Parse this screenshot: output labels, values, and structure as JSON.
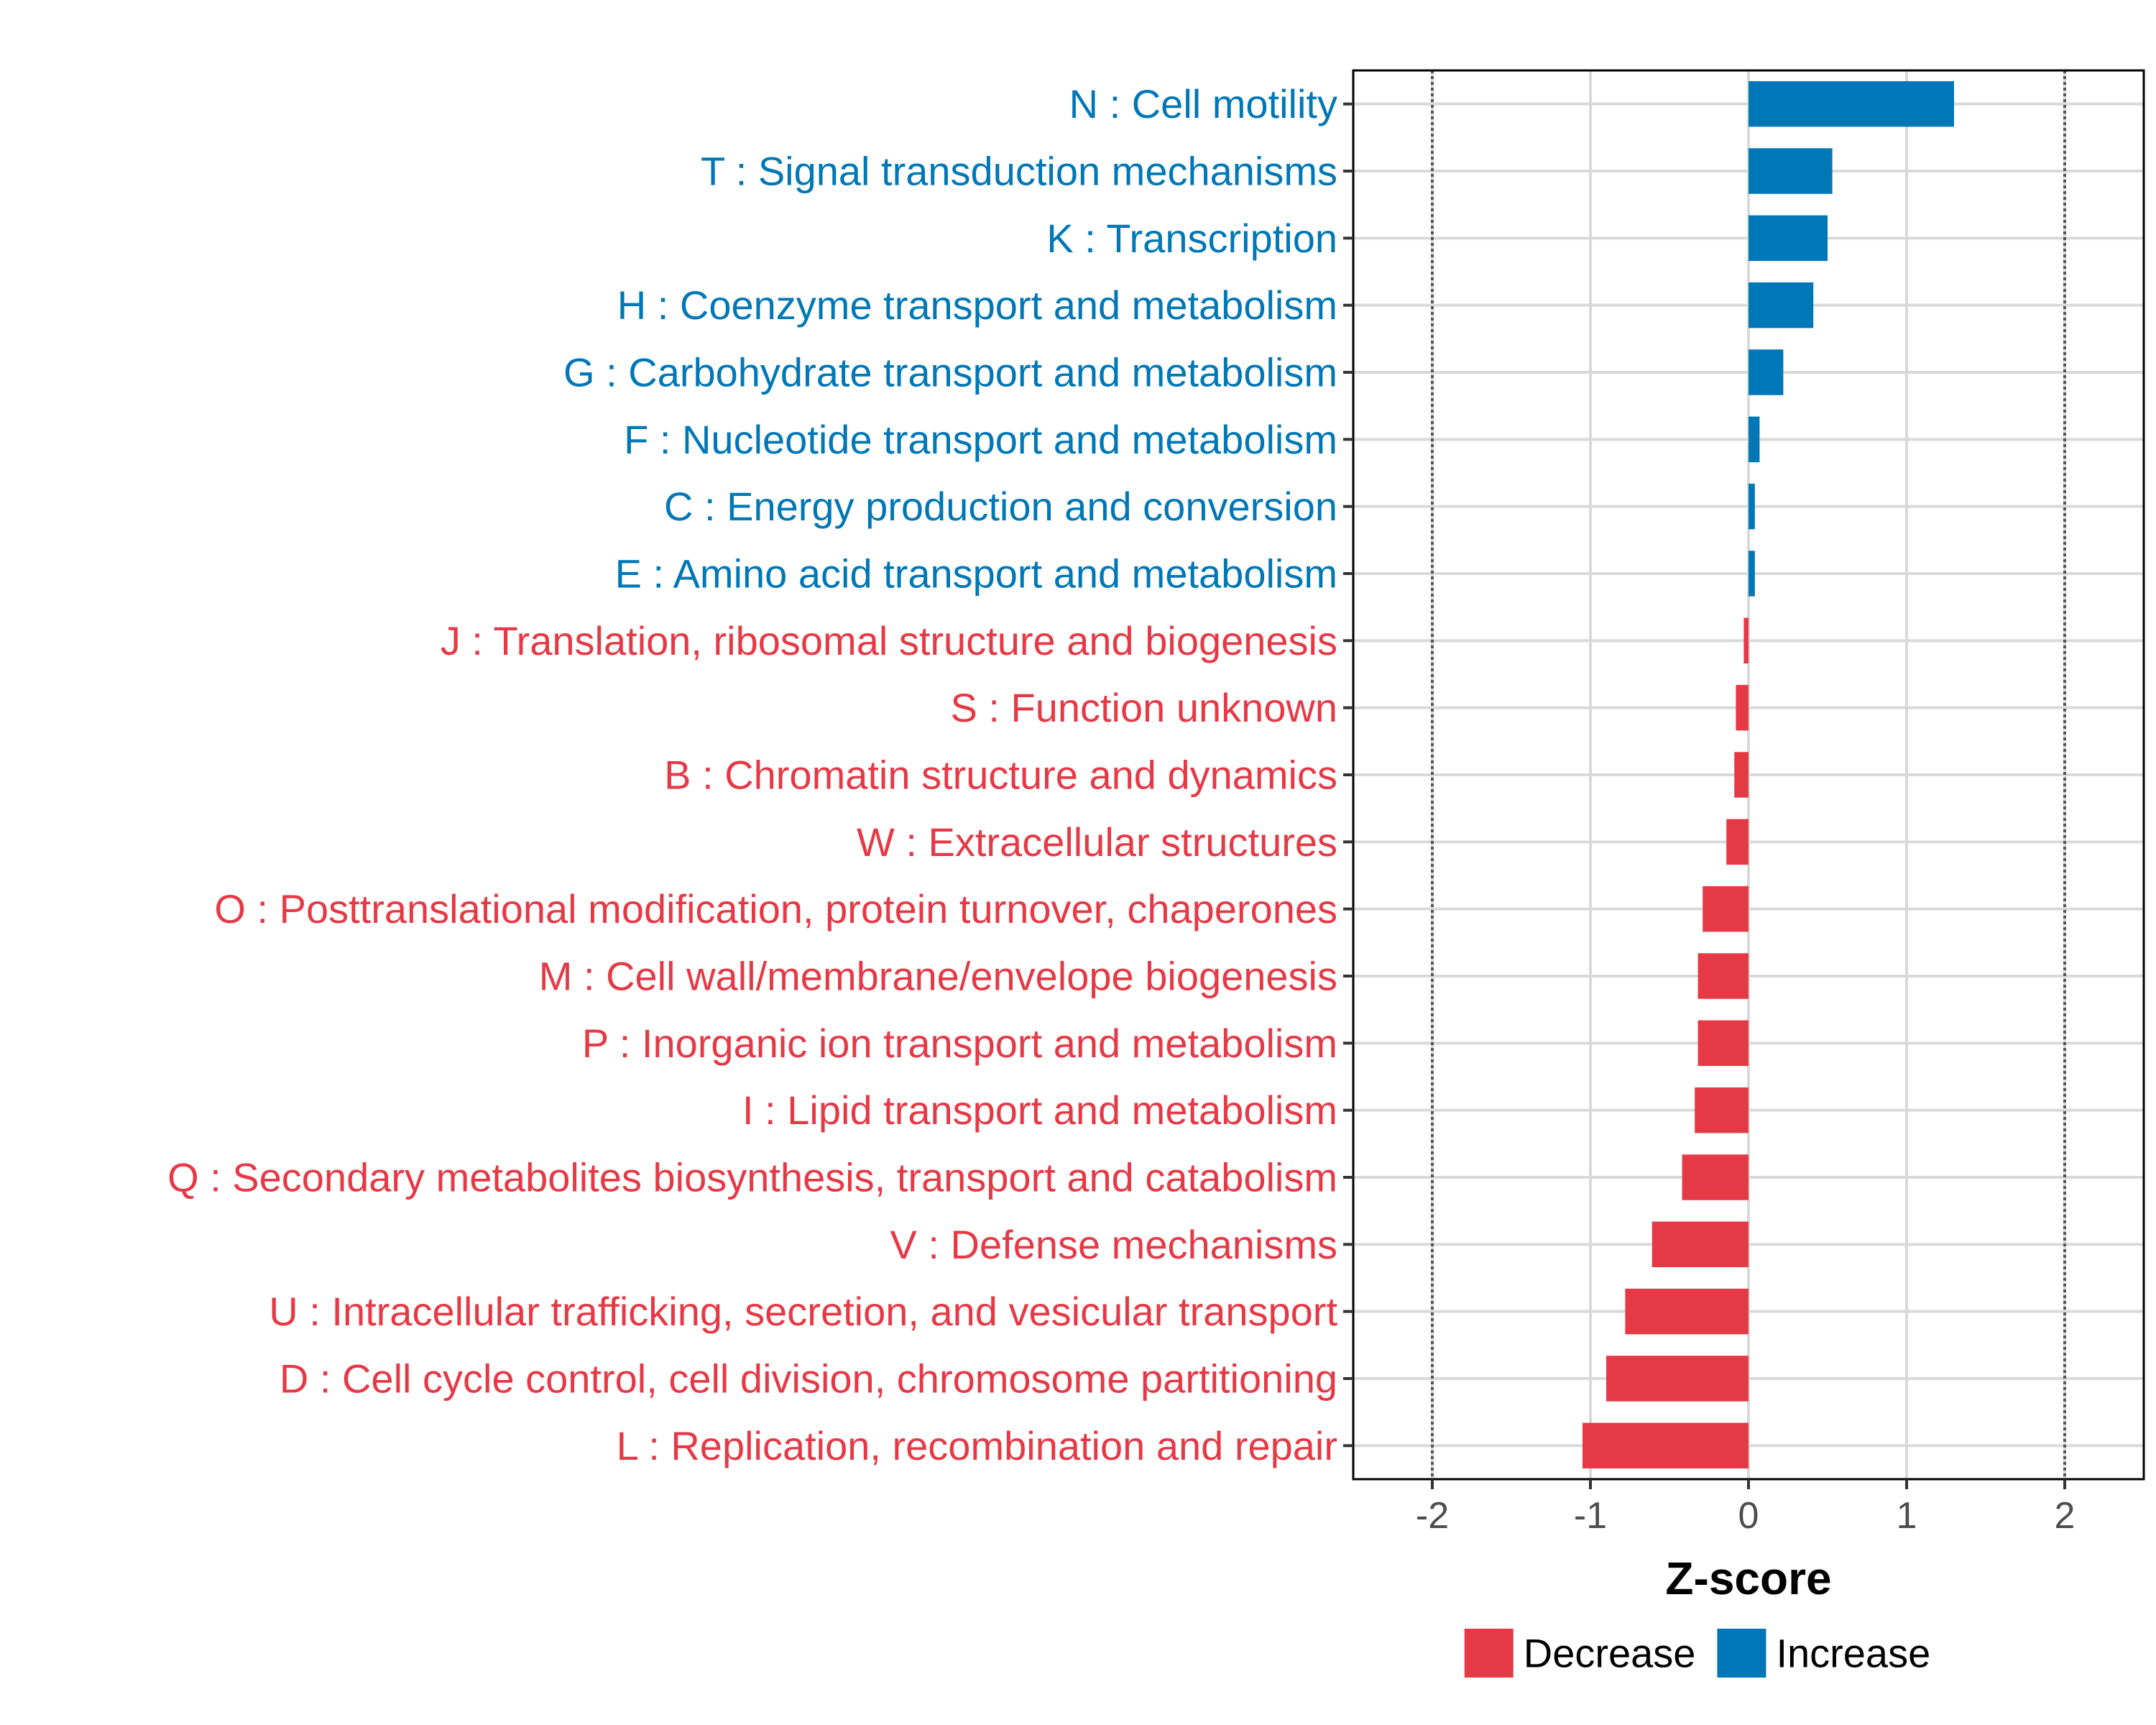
{
  "chart_data": {
    "type": "bar",
    "orientation": "horizontal",
    "xlabel": "Z-score",
    "ylabel": "",
    "xlim": [
      -2.5,
      2.5
    ],
    "xticks": [
      -2,
      -1,
      0,
      1,
      2
    ],
    "xtick_labels": [
      "-2",
      "-1",
      "0",
      "1",
      "2"
    ],
    "reference_lines": [
      -2,
      2
    ],
    "grid": true,
    "categories": [
      "N : Cell motility",
      "T : Signal transduction mechanisms",
      "K : Transcription",
      "H : Coenzyme transport and metabolism",
      "G : Carbohydrate transport and metabolism",
      "F : Nucleotide transport and metabolism",
      "C : Energy production and conversion",
      "E : Amino acid transport and metabolism",
      "J : Translation, ribosomal structure and biogenesis",
      "S : Function unknown",
      "B : Chromatin structure and dynamics",
      "W : Extracellular structures",
      "O : Posttranslational modification, protein turnover, chaperones",
      "M : Cell wall/membrane/envelope biogenesis",
      "P : Inorganic ion transport and metabolism",
      "I : Lipid transport and metabolism",
      "Q : Secondary metabolites biosynthesis, transport and catabolism",
      "V : Defense mechanisms",
      "U : Intracellular trafficking, secretion, and vesicular transport",
      "D : Cell cycle control, cell division, chromosome partitioning",
      "L : Replication, recombination and repair"
    ],
    "values": [
      1.3,
      0.53,
      0.5,
      0.41,
      0.22,
      0.07,
      0.04,
      0.04,
      -0.03,
      -0.08,
      -0.09,
      -0.14,
      -0.29,
      -0.32,
      -0.32,
      -0.34,
      -0.42,
      -0.61,
      -0.78,
      -0.9,
      -1.05
    ],
    "groups": [
      "Increase",
      "Increase",
      "Increase",
      "Increase",
      "Increase",
      "Increase",
      "Increase",
      "Increase",
      "Decrease",
      "Decrease",
      "Decrease",
      "Decrease",
      "Decrease",
      "Decrease",
      "Decrease",
      "Decrease",
      "Decrease",
      "Decrease",
      "Decrease",
      "Decrease",
      "Decrease"
    ],
    "legend": {
      "position": "bottom",
      "entries": [
        {
          "label": "Decrease",
          "color": "#E63946"
        },
        {
          "label": "Increase",
          "color": "#0077B6"
        }
      ]
    },
    "colors": {
      "Decrease": "#E63946",
      "Increase": "#0077B6",
      "grid": "#d9d9d9",
      "reference_line": "#555555"
    }
  }
}
